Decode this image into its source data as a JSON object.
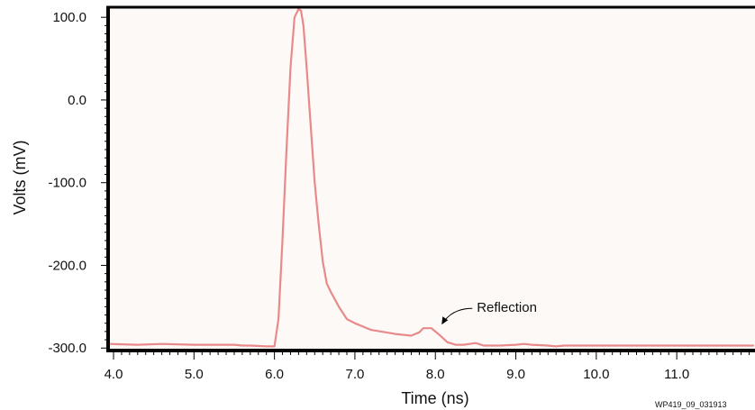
{
  "chart_data": {
    "type": "line",
    "title": "",
    "xlabel": "Time (ns)",
    "ylabel": "Volts (mV)",
    "xlim": [
      4.0,
      11.95
    ],
    "ylim": [
      -303,
      110
    ],
    "xticks": [
      {
        "value": 4.0,
        "label": "4.0"
      },
      {
        "value": 5.0,
        "label": "5.0"
      },
      {
        "value": 6.0,
        "label": "6.0"
      },
      {
        "value": 7.0,
        "label": "7.0"
      },
      {
        "value": 8.0,
        "label": "8.0"
      },
      {
        "value": 9.0,
        "label": "9.0"
      },
      {
        "value": 10.0,
        "label": "10.0"
      },
      {
        "value": 11.0,
        "label": "11.0"
      }
    ],
    "yticks": [
      {
        "value": 100,
        "label": "100.0"
      },
      {
        "value": 0,
        "label": "0.0"
      },
      {
        "value": -100,
        "label": "-100.0"
      },
      {
        "value": -200,
        "label": "-200.0"
      },
      {
        "value": -300,
        "label": "-300.0"
      }
    ],
    "grid": false,
    "line_color": "#e88a8a",
    "plot_background": "#fdf9f7",
    "series": [
      {
        "x": [
          3.95,
          4.3,
          4.6,
          5.0,
          5.5,
          5.6,
          5.7,
          5.9,
          6.0,
          6.05,
          6.1,
          6.15,
          6.2,
          6.25,
          6.3,
          6.33,
          6.36,
          6.4,
          6.45,
          6.5,
          6.55,
          6.6,
          6.65,
          6.7,
          6.8,
          6.9,
          7.0,
          7.2,
          7.5,
          7.7,
          7.8,
          7.85,
          7.95,
          8.05,
          8.15,
          8.25,
          8.35,
          8.5,
          8.6,
          8.8,
          9.0,
          9.1,
          9.2,
          9.4,
          9.5,
          9.6,
          9.8,
          10.0,
          10.5,
          11.0,
          11.5,
          11.95
        ],
        "y": [
          -295,
          -296,
          -295,
          -296,
          -296,
          -297,
          -297,
          -298,
          -298,
          -265,
          -170,
          -60,
          40,
          100,
          110,
          108,
          90,
          40,
          -30,
          -100,
          -150,
          -195,
          -222,
          -232,
          -250,
          -265,
          -270,
          -278,
          -283,
          -285,
          -281,
          -276,
          -276,
          -284,
          -293,
          -296,
          -296,
          -294,
          -297,
          -297,
          -296,
          -295,
          -296,
          -297,
          -298,
          -297,
          -297,
          -297,
          -297,
          -297,
          -297,
          -297
        ]
      }
    ],
    "annotations": [
      {
        "text": "Reflection",
        "x": 8.0,
        "y": -276
      }
    ],
    "figure_code": "WP419_09_031913"
  }
}
